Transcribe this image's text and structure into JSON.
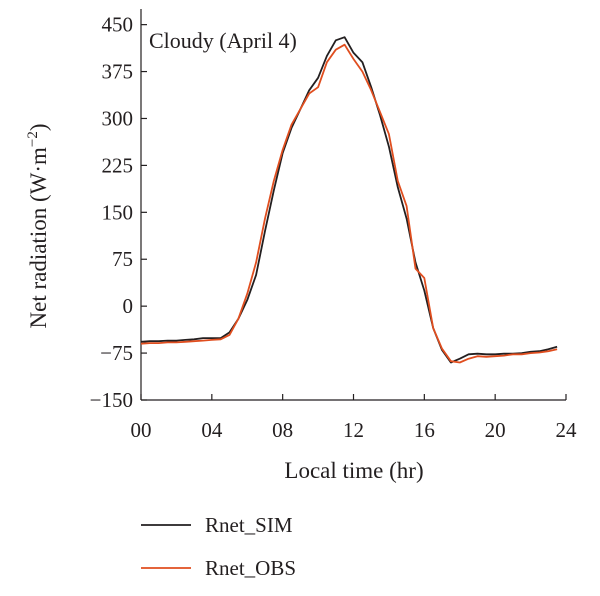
{
  "chart_data": {
    "type": "line",
    "annotation": "Cloudy (April 4)",
    "xlabel": "Local time (hr)",
    "ylabel": "Net radiation (W·m",
    "ylabel_unit_exp": "−2",
    "ylabel_close": ")",
    "xlim": [
      0,
      24
    ],
    "ylim": [
      -150,
      475
    ],
    "xticks": [
      0,
      4,
      8,
      12,
      16,
      20,
      24
    ],
    "xtick_labels": [
      "00",
      "04",
      "08",
      "12",
      "16",
      "20",
      "24"
    ],
    "yticks": [
      -150,
      -75,
      0,
      75,
      150,
      225,
      300,
      375,
      450
    ],
    "ytick_labels": [
      "−150",
      "−75",
      "0",
      "75",
      "150",
      "225",
      "300",
      "375",
      "450"
    ],
    "grid": false,
    "legend_position": "bottom-left",
    "series": [
      {
        "name": "Rnet_SIM",
        "color": "#231f20",
        "x": [
          0,
          0.5,
          1,
          1.5,
          2,
          2.5,
          3,
          3.5,
          4,
          4.5,
          5,
          5.5,
          6,
          6.5,
          7,
          7.5,
          8,
          8.5,
          9,
          9.5,
          10,
          10.5,
          11,
          11.5,
          12,
          12.5,
          13,
          13.5,
          14,
          14.5,
          15,
          15.5,
          16,
          16.5,
          17,
          17.5,
          18,
          18.5,
          19,
          19.5,
          20,
          20.5,
          21,
          21.5,
          22,
          22.5,
          23,
          23.5
        ],
        "values": [
          -57,
          -56,
          -56,
          -55,
          -55,
          -54,
          -53,
          -51,
          -51,
          -51,
          -42,
          -20,
          10,
          50,
          120,
          185,
          245,
          285,
          315,
          345,
          365,
          400,
          425,
          430,
          405,
          390,
          350,
          305,
          255,
          190,
          140,
          70,
          25,
          -35,
          -70,
          -90,
          -84,
          -77,
          -76,
          -77,
          -77,
          -76,
          -76,
          -75,
          -73,
          -72,
          -69,
          -65
        ]
      },
      {
        "name": "Rnet_OBS",
        "color": "#e04e1f",
        "x": [
          0,
          0.5,
          1,
          1.5,
          2,
          2.5,
          3,
          3.5,
          4,
          4.5,
          5,
          5.5,
          6,
          6.5,
          7,
          7.5,
          8,
          8.5,
          9,
          9.5,
          10,
          10.5,
          11,
          11.5,
          12,
          12.5,
          13,
          13.5,
          14,
          14.5,
          15,
          15.5,
          16,
          16.5,
          17,
          17.5,
          18,
          18.5,
          19,
          19.5,
          20,
          20.5,
          21,
          21.5,
          22,
          22.5,
          23,
          23.5
        ],
        "values": [
          -60,
          -59,
          -59,
          -58,
          -58,
          -57,
          -56,
          -55,
          -54,
          -53,
          -46,
          -20,
          20,
          70,
          140,
          200,
          250,
          290,
          315,
          340,
          350,
          390,
          410,
          418,
          395,
          375,
          345,
          310,
          275,
          200,
          160,
          60,
          45,
          -35,
          -68,
          -88,
          -90,
          -84,
          -80,
          -81,
          -80,
          -79,
          -77,
          -77,
          -75,
          -74,
          -72,
          -69
        ]
      }
    ]
  }
}
